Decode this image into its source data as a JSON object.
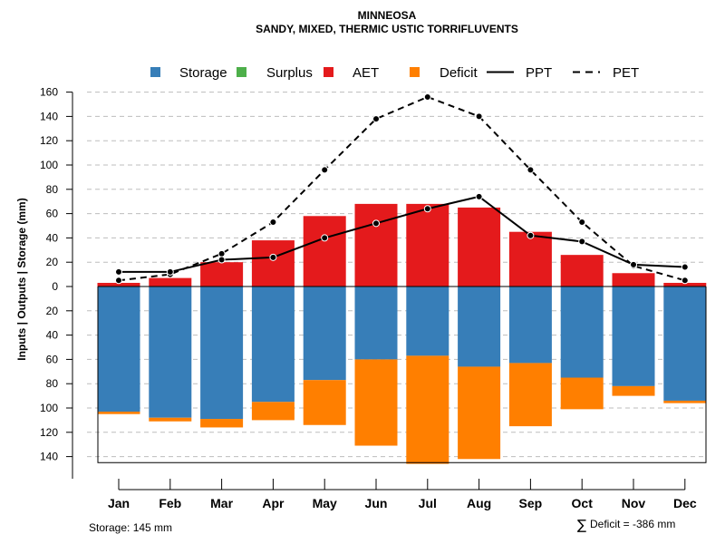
{
  "chart_data": {
    "type": "bar",
    "title": "MINNEOSA",
    "subtitle": "SANDY, MIXED, THERMIC USTIC TORRIFLUVENTS",
    "ylabel": "Inputs | Outputs | Storage    (mm)",
    "ylim": [
      -145,
      160
    ],
    "y_ticks_up": [
      0,
      20,
      40,
      60,
      80,
      100,
      120,
      140,
      160
    ],
    "y_ticks_down": [
      20,
      40,
      60,
      80,
      100,
      120,
      140
    ],
    "categories": [
      "Jan",
      "Feb",
      "Mar",
      "Apr",
      "May",
      "Jun",
      "Jul",
      "Aug",
      "Sep",
      "Oct",
      "Nov",
      "Dec"
    ],
    "legend": [
      "Storage",
      "Surplus",
      "AET",
      "Deficit",
      "PPT",
      "PET"
    ],
    "colors": {
      "storage": "#377eb8",
      "surplus": "#4daf4a",
      "aet": "#e41a1c",
      "deficit": "#ff7f00",
      "line": "#000000"
    },
    "series": [
      {
        "name": "AET",
        "values": [
          3,
          7,
          20,
          38,
          58,
          68,
          68,
          65,
          45,
          26,
          11,
          3
        ]
      },
      {
        "name": "Storage",
        "values": [
          103,
          108,
          109,
          95,
          77,
          60,
          57,
          66,
          63,
          75,
          82,
          94
        ]
      },
      {
        "name": "Deficit",
        "values": [
          2,
          3,
          7,
          15,
          37,
          71,
          89,
          76,
          52,
          26,
          8,
          2
        ]
      },
      {
        "name": "Surplus",
        "values": [
          0,
          0,
          0,
          0,
          0,
          0,
          0,
          0,
          0,
          0,
          0,
          0
        ]
      },
      {
        "name": "PPT",
        "values": [
          12,
          12,
          22,
          24,
          40,
          52,
          64,
          74,
          42,
          37,
          18,
          16
        ]
      },
      {
        "name": "PET",
        "values": [
          5,
          10,
          27,
          53,
          96,
          138,
          156,
          140,
          96,
          53,
          17,
          5
        ]
      }
    ]
  },
  "footer": {
    "storage": "Storage: 145 mm",
    "deficit_symbol": "∑",
    "deficit": "Deficit = -386 mm"
  }
}
